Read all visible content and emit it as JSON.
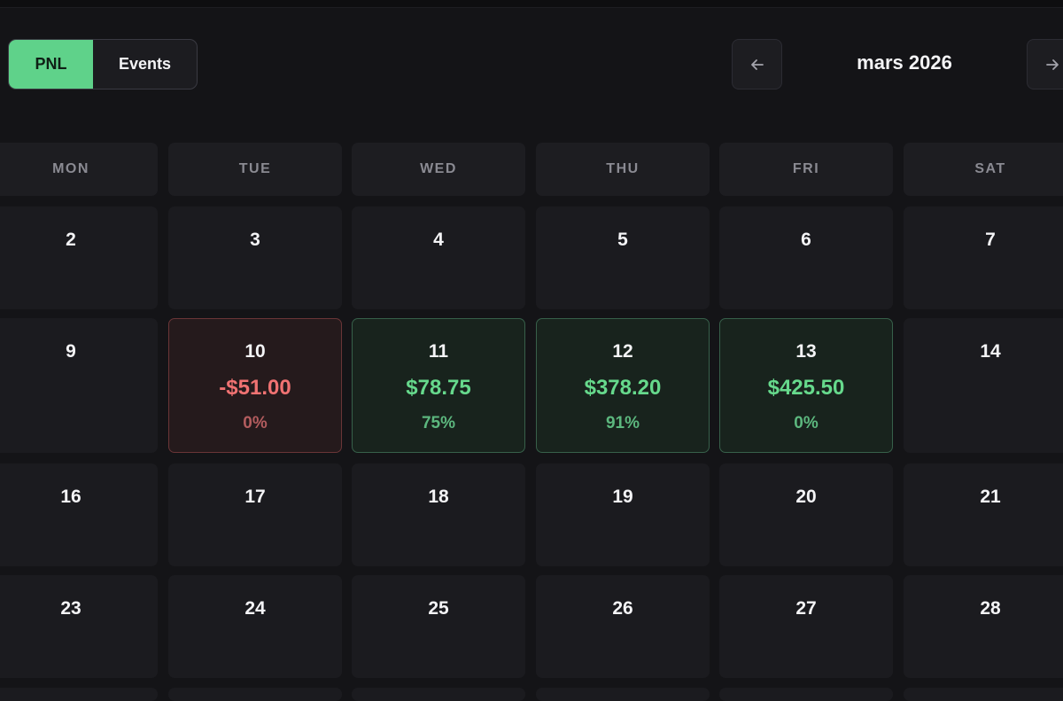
{
  "view_toggle": {
    "pnl_label": "PNL",
    "events_label": "Events",
    "active": "PNL"
  },
  "month_nav": {
    "title": "mars 2026",
    "prev_icon": "arrow-left-icon",
    "next_icon": "arrow-right-icon"
  },
  "weekdays": [
    "MON",
    "TUE",
    "WED",
    "THU",
    "FRI",
    "SAT"
  ],
  "weeks": [
    {
      "days": [
        {
          "day": "2"
        },
        {
          "day": "3"
        },
        {
          "day": "4"
        },
        {
          "day": "5"
        },
        {
          "day": "6"
        },
        {
          "day": "7"
        }
      ]
    },
    {
      "days": [
        {
          "day": "9"
        },
        {
          "day": "10",
          "pnl": "-$51.00",
          "pct": "0%",
          "status": "loss"
        },
        {
          "day": "11",
          "pnl": "$78.75",
          "pct": "75%",
          "status": "gain"
        },
        {
          "day": "12",
          "pnl": "$378.20",
          "pct": "91%",
          "status": "gain"
        },
        {
          "day": "13",
          "pnl": "$425.50",
          "pct": "0%",
          "status": "gain"
        },
        {
          "day": "14"
        }
      ]
    },
    {
      "days": [
        {
          "day": "16"
        },
        {
          "day": "17"
        },
        {
          "day": "18"
        },
        {
          "day": "19"
        },
        {
          "day": "20"
        },
        {
          "day": "21"
        }
      ]
    },
    {
      "days": [
        {
          "day": "23"
        },
        {
          "day": "24"
        },
        {
          "day": "25"
        },
        {
          "day": "26"
        },
        {
          "day": "27"
        },
        {
          "day": "28"
        }
      ]
    }
  ],
  "colors": {
    "accent": "#5fd28a",
    "gain": "#66d98c",
    "loss": "#f07272",
    "background": "#141417"
  }
}
